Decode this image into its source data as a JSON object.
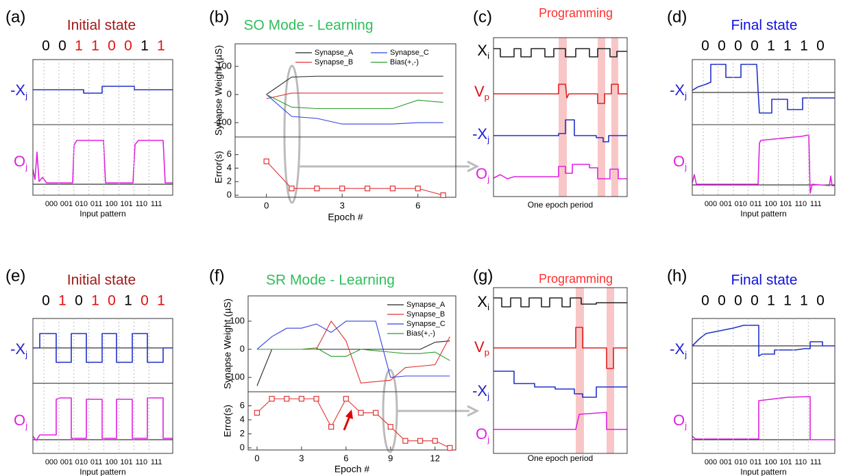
{
  "chart_data": [
    {
      "type": "line",
      "label": "(b)",
      "title": "SO Mode - Learning",
      "title_color": "#2fbf5a",
      "ylabel": "Synapse Weight (µS)",
      "x": [
        0,
        1,
        2,
        3,
        4,
        5,
        6,
        7
      ],
      "xlim": [
        -1.24,
        7.5
      ],
      "ylim": [
        -151,
        180
      ],
      "yticks": [
        -100,
        0,
        100
      ],
      "legend": "upper right",
      "series": [
        {
          "name": "Synapse_A",
          "color": "#222222",
          "values": [
            0,
            62,
            65,
            65,
            65,
            65,
            65,
            65
          ]
        },
        {
          "name": "Synapse_B",
          "color": "#e03030",
          "values": [
            -15,
            5,
            5,
            5,
            5,
            5,
            5,
            5
          ]
        },
        {
          "name": "Synapse_C",
          "color": "#3040e0",
          "values": [
            0,
            -78,
            -85,
            -105,
            -105,
            -105,
            -100,
            -100
          ]
        },
        {
          "name": "Bias(+,-)",
          "color": "#2a9a2a",
          "values": [
            0,
            -45,
            -50,
            -50,
            -50,
            -50,
            -20,
            -28
          ]
        }
      ]
    },
    {
      "type": "line",
      "ylabel": "Error(s)",
      "xlabel": "Epoch #",
      "x": [
        0,
        1,
        2,
        3,
        4,
        5,
        6,
        7
      ],
      "xlim": [
        -1.24,
        7.5
      ],
      "xticks": [
        0,
        3,
        6
      ],
      "ylim": [
        -0.3,
        8.6
      ],
      "yticks": [
        0,
        2,
        4,
        6
      ],
      "color": "#e03030",
      "marker": "square",
      "values": [
        5,
        1,
        1,
        1,
        1,
        1,
        1,
        0
      ]
    },
    {
      "type": "line",
      "label": "(f)",
      "title": "SR Mode - Learning",
      "title_color": "#2fbf5a",
      "ylabel": "Synapse Weight (µS)",
      "x": [
        0,
        1,
        2,
        3,
        4,
        5,
        6,
        7,
        8,
        9,
        10,
        11,
        12,
        13
      ],
      "xlim": [
        -0.6,
        13.4
      ],
      "ylim": [
        -151,
        190
      ],
      "yticks": [
        -100,
        0,
        100
      ],
      "legend": "upper right",
      "series": [
        {
          "name": "Synapse_A",
          "color": "#222222",
          "values": [
            -130,
            0,
            0,
            0,
            0,
            0,
            0,
            0,
            0,
            0,
            0,
            0,
            25,
            30
          ]
        },
        {
          "name": "Synapse_B",
          "color": "#e03030",
          "values": [
            0,
            0,
            0,
            0,
            0,
            100,
            30,
            -120,
            -115,
            -110,
            -65,
            -60,
            -55,
            45
          ]
        },
        {
          "name": "Synapse_C",
          "color": "#3040e0",
          "values": [
            0,
            45,
            75,
            75,
            90,
            60,
            100,
            100,
            100,
            -100,
            -95,
            -95,
            -95,
            -95
          ]
        },
        {
          "name": "Bias(+,-)",
          "color": "#2a9a2a",
          "values": [
            0,
            0,
            0,
            0,
            5,
            -25,
            -25,
            0,
            -5,
            -10,
            -15,
            -15,
            -10,
            -40
          ]
        }
      ]
    },
    {
      "type": "line",
      "ylabel": "Error(s)",
      "xlabel": "Epoch #",
      "x": [
        0,
        1,
        2,
        3,
        4,
        5,
        6,
        7,
        8,
        9,
        10,
        11,
        12,
        13
      ],
      "xlim": [
        -0.6,
        13.4
      ],
      "xticks": [
        0,
        3,
        6,
        9,
        12
      ],
      "ylim": [
        -0.3,
        8
      ],
      "yticks": [
        0,
        2,
        4,
        6
      ],
      "color": "#e03030",
      "marker": "square",
      "values": [
        5,
        7,
        7,
        7,
        7,
        3,
        7,
        5,
        5,
        3,
        1,
        1,
        1,
        0
      ]
    }
  ],
  "panels": [
    {
      "label": "(a)",
      "title": "Initial state",
      "title_color": "#a01818",
      "bits": [
        "0",
        "0",
        "1",
        "1",
        "0",
        "0",
        "1",
        "1"
      ],
      "bit_colors": [
        "#000000",
        "#000000",
        "#e01010",
        "#e01010",
        "#e01010",
        "#e01010",
        "#000000",
        "#e01010"
      ],
      "trace_labels": [
        {
          "main": "-X",
          "sub": "j",
          "color": "#2020d0"
        },
        {
          "main": "O",
          "sub": "j",
          "color": "#e020e0"
        }
      ],
      "xticks": [
        "000",
        "001",
        "010",
        "011",
        "100",
        "101",
        "110",
        "111"
      ],
      "xlabel": "Input pattern"
    },
    {
      "label": "(c)",
      "title": "Programming",
      "title_color": "#ff3030",
      "trace_labels": [
        {
          "main": "X",
          "sub": "i",
          "color": "#000000"
        },
        {
          "main": "V",
          "sub": "p",
          "color": "#e01010"
        },
        {
          "main": "-X",
          "sub": "j",
          "color": "#2020d0"
        },
        {
          "main": "O",
          "sub": "j",
          "color": "#e020e0"
        }
      ],
      "xlabel": "One epoch period"
    },
    {
      "label": "(d)",
      "title": "Final state",
      "title_color": "#1010e0",
      "bits": [
        "0",
        "0",
        "0",
        "0",
        "1",
        "1",
        "1",
        "0"
      ],
      "bit_colors": [
        "#000000",
        "#000000",
        "#000000",
        "#000000",
        "#000000",
        "#000000",
        "#000000",
        "#000000"
      ],
      "trace_labels": [
        {
          "main": "-X",
          "sub": "j",
          "color": "#2020d0"
        },
        {
          "main": "O",
          "sub": "j",
          "color": "#e020e0"
        }
      ],
      "xticks": [
        "000",
        "001",
        "010",
        "011",
        "100",
        "101",
        "110",
        "111"
      ],
      "xlabel": "Input pattern"
    },
    {
      "label": "(e)",
      "title": "Initial state",
      "title_color": "#a01818",
      "bits": [
        "0",
        "1",
        "0",
        "1",
        "0",
        "1",
        "0",
        "1"
      ],
      "bit_colors": [
        "#000000",
        "#e01010",
        "#000000",
        "#e01010",
        "#e01010",
        "#000000",
        "#e01010",
        "#e01010"
      ],
      "trace_labels": [
        {
          "main": "-X",
          "sub": "j",
          "color": "#2020d0"
        },
        {
          "main": "O",
          "sub": "j",
          "color": "#e020e0"
        }
      ],
      "xticks": [
        "000",
        "001",
        "010",
        "011",
        "100",
        "101",
        "110",
        "111"
      ],
      "xlabel": "Input pattern"
    },
    {
      "label": "(g)",
      "title": "Programming",
      "title_color": "#ff3030",
      "trace_labels": [
        {
          "main": "X",
          "sub": "i",
          "color": "#000000"
        },
        {
          "main": "V",
          "sub": "p",
          "color": "#e01010"
        },
        {
          "main": "-X",
          "sub": "j",
          "color": "#2020d0"
        },
        {
          "main": "O",
          "sub": "j",
          "color": "#e020e0"
        }
      ],
      "xlabel": "One epoch period"
    },
    {
      "label": "(h)",
      "title": "Final state",
      "title_color": "#1010e0",
      "bits": [
        "0",
        "0",
        "0",
        "0",
        "1",
        "1",
        "1",
        "0"
      ],
      "bit_colors": [
        "#000000",
        "#000000",
        "#000000",
        "#000000",
        "#000000",
        "#000000",
        "#000000",
        "#000000"
      ],
      "trace_labels": [
        {
          "main": "-X",
          "sub": "j",
          "color": "#2020d0"
        },
        {
          "main": "O",
          "sub": "j",
          "color": "#e020e0"
        }
      ],
      "xticks": [
        "000",
        "001",
        "010",
        "011",
        "100",
        "101",
        "110",
        "111"
      ],
      "xlabel": "Input pattern"
    }
  ]
}
